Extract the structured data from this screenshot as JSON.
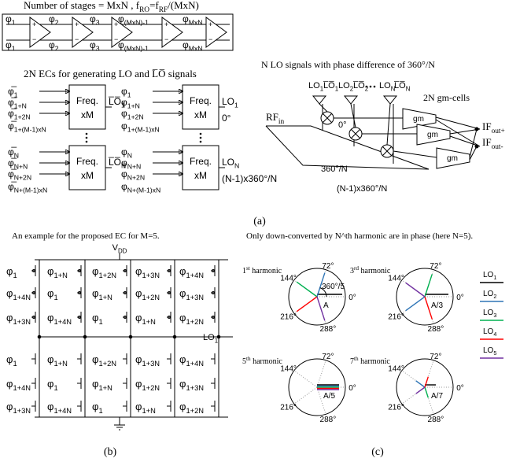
{
  "panel_a": {
    "ring_title": [
      "Number of stages = ",
      "MxN",
      " ,  f",
      {
        "sub": "RO"
      },
      "=f",
      {
        "sub": "RF"
      },
      "/(MxN)"
    ],
    "ring_top": [
      [
        "φ",
        {
          "sub": "1"
        }
      ],
      [
        "φ",
        {
          "sub": "2"
        }
      ],
      [
        "φ",
        {
          "sub": "3"
        }
      ],
      [
        "φ",
        {
          "sub": "(MxN)-1"
        }
      ],
      [
        "φ",
        {
          "sub": "MxN"
        }
      ]
    ],
    "ring_bottom": [
      [
        "φ̅",
        {
          "sub": "1"
        }
      ],
      [
        "φ̅",
        {
          "sub": "2"
        }
      ],
      [
        "φ̅",
        {
          "sub": "3"
        }
      ],
      [
        "φ̅",
        {
          "sub": "(MxN)-1"
        }
      ],
      [
        "φ̅",
        {
          "sub": "MxN"
        }
      ]
    ],
    "amp_signs": [
      "+",
      "−"
    ],
    "ec_title": "2N ECs for generating LO and L̅O̅ signals",
    "blocks": [
      {
        "inputs": [
          [
            "φ̅",
            {
              "sub": "1"
            }
          ],
          [
            "φ̅",
            {
              "sub": "1+N"
            }
          ],
          [
            "φ̅",
            {
              "sub": "1+2N"
            }
          ],
          [
            "φ̅",
            {
              "sub": "1+(M-1)xN"
            }
          ]
        ],
        "line1": "Freq.",
        "line2": "xM",
        "output": [
          "L̅O̅",
          {
            "sub": "1"
          }
        ]
      },
      {
        "inputs": [
          [
            "φ",
            {
              "sub": "1"
            }
          ],
          [
            "φ",
            {
              "sub": "1+N"
            }
          ],
          [
            "φ",
            {
              "sub": "1+2N"
            }
          ],
          [
            "φ",
            {
              "sub": "1+(M-1)xN"
            }
          ]
        ],
        "line1": "Freq.",
        "line2": "xM",
        "output": [
          "LO",
          {
            "sub": "1"
          }
        ],
        "phase": "0°"
      },
      {
        "inputs": [
          [
            "φ̅",
            {
              "sub": "N"
            }
          ],
          [
            "φ̅",
            {
              "sub": "N+N"
            }
          ],
          [
            "φ̅",
            {
              "sub": "N+2N"
            }
          ],
          [
            "φ̅",
            {
              "sub": "N+(M-1)xN"
            }
          ]
        ],
        "line1": "Freq.",
        "line2": "xM",
        "output": [
          "L̅O̅",
          {
            "sub": "N"
          }
        ]
      },
      {
        "inputs": [
          [
            "φ",
            {
              "sub": "N"
            }
          ],
          [
            "φ",
            {
              "sub": "N+N"
            }
          ],
          [
            "φ",
            {
              "sub": "N+2N"
            }
          ],
          [
            "φ",
            {
              "sub": "N+(M-1)xN"
            }
          ]
        ],
        "line1": "Freq.",
        "line2": "xM",
        "output": [
          "LO",
          {
            "sub": "N"
          }
        ],
        "phase": "(N-1)x360°/N"
      }
    ],
    "lo_title": "N LO signals with phase difference of 360°/N",
    "lo_labels": [
      [
        "LO",
        {
          "sub": "1"
        }
      ],
      [
        "L̅O̅",
        {
          "sub": "1"
        }
      ],
      [
        "LO",
        {
          "sub": "2"
        }
      ],
      [
        "L̅O̅",
        {
          "sub": "2"
        }
      ],
      [
        "LO",
        {
          "sub": "N"
        }
      ],
      [
        "L̅O̅",
        {
          "sub": "N"
        }
      ]
    ],
    "gm_title": "2N gm-cells",
    "rf": [
      "RF",
      {
        "sub": "in"
      }
    ],
    "gm": [
      "gm",
      "gm",
      "gm"
    ],
    "if_plus": [
      "IF",
      {
        "sub": "out+"
      }
    ],
    "if_minus": [
      "IF",
      {
        "sub": "out-"
      }
    ],
    "mixer_phases": [
      "0°",
      "360°/N",
      "(N-1)x360°/N"
    ],
    "caption": "(a)"
  },
  "panel_b": {
    "title": "An example for the proposed EC for M=5.",
    "vdd": [
      "V",
      {
        "sub": "DD"
      }
    ],
    "rows": [
      [
        [
          "φ",
          {
            "sub": "1"
          }
        ],
        [
          "φ",
          {
            "sub": "1+N"
          }
        ],
        [
          "φ",
          {
            "sub": "1+2N"
          }
        ],
        [
          "φ",
          {
            "sub": "1+3N"
          }
        ],
        [
          "φ",
          {
            "sub": "1+4N"
          }
        ]
      ],
      [
        [
          "φ",
          {
            "sub": "1+4N"
          }
        ],
        [
          "φ",
          {
            "sub": "1"
          }
        ],
        [
          "φ",
          {
            "sub": "1+N"
          }
        ],
        [
          "φ",
          {
            "sub": "1+2N"
          }
        ],
        [
          "φ",
          {
            "sub": "1+3N"
          }
        ]
      ],
      [
        [
          "φ",
          {
            "sub": "1+3N"
          }
        ],
        [
          "φ",
          {
            "sub": "1+4N"
          }
        ],
        [
          "φ",
          {
            "sub": "1"
          }
        ],
        [
          "φ",
          {
            "sub": "1+N"
          }
        ],
        [
          "φ",
          {
            "sub": "1+2N"
          }
        ]
      ],
      [
        [
          "φ",
          {
            "sub": "1"
          }
        ],
        [
          "φ",
          {
            "sub": "1+N"
          }
        ],
        [
          "φ",
          {
            "sub": "1+2N"
          }
        ],
        [
          "φ",
          {
            "sub": "1+3N"
          }
        ],
        [
          "φ",
          {
            "sub": "1+4N"
          }
        ]
      ],
      [
        [
          "φ",
          {
            "sub": "1+4N"
          }
        ],
        [
          "φ",
          {
            "sub": "1"
          }
        ],
        [
          "φ",
          {
            "sub": "1+N"
          }
        ],
        [
          "φ",
          {
            "sub": "1+2N"
          }
        ],
        [
          "φ",
          {
            "sub": "1+3N"
          }
        ]
      ],
      [
        [
          "φ",
          {
            "sub": "1+3N"
          }
        ],
        [
          "φ",
          {
            "sub": "1+4N"
          }
        ],
        [
          "φ",
          {
            "sub": "1"
          }
        ],
        [
          "φ",
          {
            "sub": "1+N"
          }
        ],
        [
          "φ",
          {
            "sub": "1+2N"
          }
        ]
      ]
    ],
    "output": [
      "LO",
      {
        "sub": "1"
      }
    ],
    "caption": "(b)"
  },
  "panel_c": {
    "title": "Only down-converted by N^th harmonic are in phase (here N=5).",
    "angles": [
      "72°",
      "144°",
      "216°",
      "288°",
      "0°"
    ],
    "harmonics": [
      {
        "label": [
          "1",
          {
            "sup": "st"
          },
          " harmonic"
        ],
        "amp": "A",
        "extra": "360°/5"
      },
      {
        "label": [
          "3",
          {
            "sup": "rd"
          },
          " harmonic"
        ],
        "amp": "A/3"
      },
      {
        "label": [
          "5",
          {
            "sup": "th"
          },
          " harmonic"
        ],
        "amp": "A/5"
      },
      {
        "label": [
          "7",
          {
            "sup": "th"
          },
          " harmonic"
        ],
        "amp": "A/7"
      }
    ],
    "legend": [
      {
        "name": [
          "LO",
          {
            "sub": "1"
          }
        ],
        "color": "#000000"
      },
      {
        "name": [
          "LO",
          {
            "sub": "2"
          }
        ],
        "color": "#2e75b6"
      },
      {
        "name": [
          "LO",
          {
            "sub": "3"
          }
        ],
        "color": "#00b050"
      },
      {
        "name": [
          "LO",
          {
            "sub": "4"
          }
        ],
        "color": "#ff0000"
      },
      {
        "name": [
          "LO",
          {
            "sub": "5"
          }
        ],
        "color": "#7030a0"
      }
    ],
    "caption": "(c)"
  }
}
